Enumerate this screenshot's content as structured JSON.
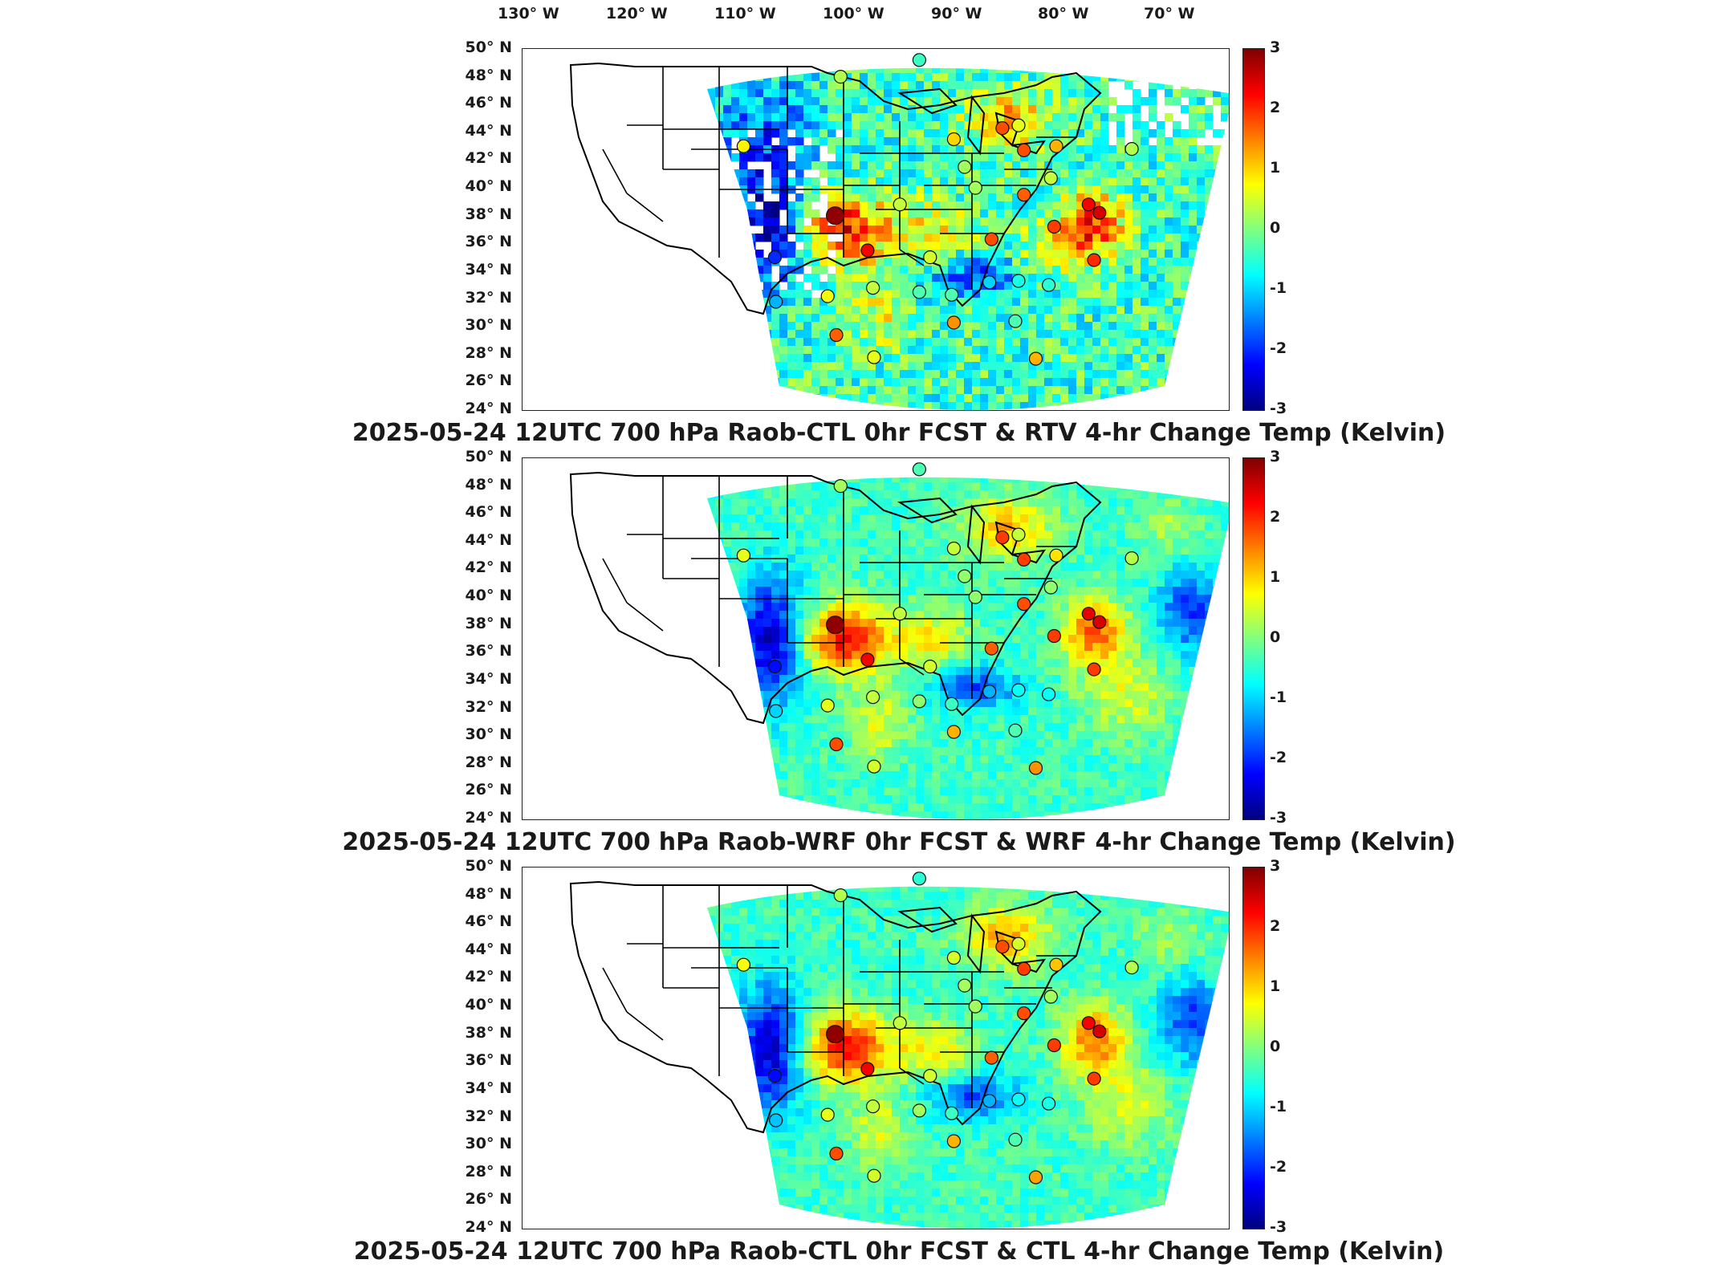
{
  "lon_labels": [
    "130° W",
    "120° W",
    "110° W",
    "100° W",
    "90° W",
    "80° W",
    "70° W"
  ],
  "lat_labels": [
    "50° N",
    "48° N",
    "46° N",
    "44° N",
    "42° N",
    "40° N",
    "38° N",
    "36° N",
    "34° N",
    "32° N",
    "30° N",
    "28° N",
    "26° N",
    "24° N"
  ],
  "colorbar": {
    "ticks": [
      "3",
      "2",
      "1",
      "0",
      "-1",
      "-2",
      "-3"
    ],
    "range": [
      -3,
      3
    ],
    "colormap": "jet",
    "colors": [
      "#00007f",
      "#0000ff",
      "#0080ff",
      "#00ffff",
      "#80ff80",
      "#ffff00",
      "#ff8000",
      "#ff0000",
      "#7f0000"
    ]
  },
  "panels": [
    {
      "title": "2025-05-24 12UTC 700 hPa Raob-CTL 0hr FCST & RTV 4-hr Change Temp (Kelvin)",
      "field_tone": "mixed-missing"
    },
    {
      "title": "2025-05-24 12UTC 700 hPa Raob-WRF 0hr FCST & WRF 4-hr Change Temp (Kelvin)",
      "field_tone": "smooth"
    },
    {
      "title": "2025-05-24 12UTC 700 hPa Raob-CTL 0hr FCST & CTL 4-hr Change Temp (Kelvin)",
      "field_tone": "smooth"
    }
  ],
  "stations": [
    {
      "lon": -100.5,
      "lat": 48.0,
      "v1": 0.3,
      "v2": 0.2,
      "v3": 0.3
    },
    {
      "lon": -93.2,
      "lat": 49.2,
      "v1": -0.4,
      "v2": -0.3,
      "v3": -0.5
    },
    {
      "lon": -90.0,
      "lat": 43.5,
      "v1": 1.0,
      "v2": 0.4,
      "v3": 0.5
    },
    {
      "lon": -85.5,
      "lat": 44.3,
      "v1": 1.8,
      "v2": 1.9,
      "v3": 1.8
    },
    {
      "lon": -84.0,
      "lat": 44.5,
      "v1": 0.6,
      "v2": 0.4,
      "v3": 0.5
    },
    {
      "lon": -83.5,
      "lat": 42.7,
      "v1": 1.8,
      "v2": 1.9,
      "v3": 1.9
    },
    {
      "lon": -80.5,
      "lat": 43.0,
      "v1": 1.2,
      "v2": 0.9,
      "v3": 1.1
    },
    {
      "lon": -73.5,
      "lat": 42.8,
      "v1": 0.3,
      "v2": 0.3,
      "v3": 0.3
    },
    {
      "lon": -89.0,
      "lat": 41.5,
      "v1": 0.2,
      "v2": 0.1,
      "v3": 0.2
    },
    {
      "lon": -88.0,
      "lat": 40.0,
      "v1": 0.2,
      "v2": 0.1,
      "v3": 0.2
    },
    {
      "lon": -81.0,
      "lat": 40.7,
      "v1": 0.4,
      "v2": 0.1,
      "v3": 0.2
    },
    {
      "lon": -83.5,
      "lat": 39.5,
      "v1": 1.7,
      "v2": 1.8,
      "v3": 1.8
    },
    {
      "lon": -77.5,
      "lat": 38.8,
      "v1": 2.3,
      "v2": 2.4,
      "v3": 2.3
    },
    {
      "lon": -76.5,
      "lat": 38.2,
      "v1": 2.5,
      "v2": 2.5,
      "v3": 2.5
    },
    {
      "lon": -80.7,
      "lat": 37.2,
      "v1": 1.9,
      "v2": 1.9,
      "v3": 1.9
    },
    {
      "lon": -95.0,
      "lat": 38.8,
      "v1": 0.4,
      "v2": 0.4,
      "v3": 0.4
    },
    {
      "lon": -101.0,
      "lat": 38.0,
      "v1": 2.9,
      "v2": 2.9,
      "v3": 2.9
    },
    {
      "lon": -98.0,
      "lat": 35.5,
      "v1": 2.3,
      "v2": 2.3,
      "v3": 2.3
    },
    {
      "lon": -92.2,
      "lat": 35.0,
      "v1": 0.5,
      "v2": 0.5,
      "v3": 0.5
    },
    {
      "lon": -86.5,
      "lat": 36.3,
      "v1": 1.8,
      "v2": 1.7,
      "v3": 1.7
    },
    {
      "lon": -106.6,
      "lat": 35.0,
      "v1": -2.0,
      "v2": -2.2,
      "v3": -2.2
    },
    {
      "lon": -109.5,
      "lat": 43.0,
      "v1": 0.8,
      "v2": 0.6,
      "v3": 0.7
    },
    {
      "lon": -101.7,
      "lat": 32.2,
      "v1": 0.7,
      "v2": 0.6,
      "v3": 0.6
    },
    {
      "lon": -97.5,
      "lat": 32.8,
      "v1": 0.4,
      "v2": 0.4,
      "v3": 0.4
    },
    {
      "lon": -93.2,
      "lat": 32.5,
      "v1": -0.3,
      "v2": 0.1,
      "v3": 0.2
    },
    {
      "lon": -90.2,
      "lat": 32.3,
      "v1": -0.3,
      "v2": -0.4,
      "v3": -0.4
    },
    {
      "lon": -86.7,
      "lat": 33.2,
      "v1": -1.0,
      "v2": -1.2,
      "v3": -1.2
    },
    {
      "lon": -84.0,
      "lat": 33.3,
      "v1": -0.6,
      "v2": -0.7,
      "v3": -0.7
    },
    {
      "lon": -81.2,
      "lat": 33.0,
      "v1": -0.5,
      "v2": -0.7,
      "v3": -0.6
    },
    {
      "lon": -77.0,
      "lat": 34.8,
      "v1": 2.0,
      "v2": 1.9,
      "v3": 1.9
    },
    {
      "lon": -106.5,
      "lat": 31.8,
      "v1": -1.2,
      "v2": -1.0,
      "v3": -1.1
    },
    {
      "lon": -100.9,
      "lat": 29.4,
      "v1": 1.7,
      "v2": 1.8,
      "v3": 1.8
    },
    {
      "lon": -97.4,
      "lat": 27.8,
      "v1": 0.6,
      "v2": 0.5,
      "v3": 0.5
    },
    {
      "lon": -90.0,
      "lat": 30.3,
      "v1": 1.4,
      "v2": 1.2,
      "v3": 1.2
    },
    {
      "lon": -84.3,
      "lat": 30.4,
      "v1": -0.3,
      "v2": -0.3,
      "v3": -0.3
    },
    {
      "lon": -82.4,
      "lat": 27.7,
      "v1": 1.2,
      "v2": 1.4,
      "v3": 1.3
    }
  ]
}
